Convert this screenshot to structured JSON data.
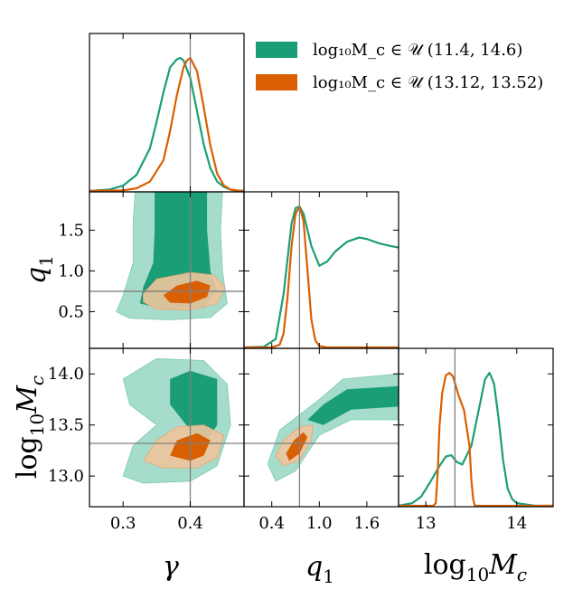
{
  "chart_data": {
    "type": "corner",
    "parameters": [
      {
        "key": "gamma",
        "label": "γ",
        "range": [
          0.25,
          0.48
        ],
        "ticks": [
          0.3,
          0.4
        ],
        "tick_labels": [
          "0.3",
          "0.4"
        ],
        "truth": 0.4
      },
      {
        "key": "q1",
        "label": "q₁",
        "range": [
          0.05,
          1.97
        ],
        "ticks": [
          0.5,
          1.0,
          1.5
        ],
        "tick_labels": [
          "0.5",
          "1.0",
          "1.5"
        ],
        "x_ticks": [
          0.4,
          1.0,
          1.6
        ],
        "x_tick_labels": [
          "0.4",
          "1.0",
          "1.6"
        ],
        "x_range": [
          0.05,
          2.0
        ],
        "truth": 0.75
      },
      {
        "key": "log10Mc",
        "label": "log₁₀M_c",
        "range": [
          12.7,
          14.25
        ],
        "ticks": [
          13.0,
          13.5,
          14.0
        ],
        "tick_labels": [
          "13.0",
          "13.5",
          "14.0"
        ],
        "x_range": [
          12.7,
          14.4
        ],
        "x_ticks": [
          13,
          14
        ],
        "x_tick_labels": [
          "13",
          "14"
        ],
        "truth": 13.32
      }
    ],
    "axis_titles": {
      "gamma": "γ",
      "q1": "q",
      "q1_sub": "1",
      "mc_prefix": "log",
      "mc_sub": "10",
      "mc_var": "M",
      "mc_var_sub": "c"
    },
    "series": [
      {
        "name": "wide_prior",
        "legend": "log₁₀M_c ∈ 𝒰 (11.4, 14.6)",
        "color": "#1b9e77",
        "color_light": "#a6dccb",
        "marginals": {
          "gamma": {
            "x": [
              0.25,
              0.28,
              0.3,
              0.32,
              0.34,
              0.35,
              0.36,
              0.37,
              0.38,
              0.385,
              0.39,
              0.4,
              0.41,
              0.42,
              0.43,
              0.44,
              0.45,
              0.46,
              0.47,
              0.48
            ],
            "y": [
              0.0,
              0.01,
              0.04,
              0.12,
              0.32,
              0.52,
              0.74,
              0.93,
              0.99,
              1.0,
              0.98,
              0.85,
              0.6,
              0.35,
              0.17,
              0.07,
              0.03,
              0.01,
              0.003,
              0.0
            ]
          },
          "q1": {
            "x": [
              0.05,
              0.3,
              0.45,
              0.55,
              0.65,
              0.7,
              0.75,
              0.8,
              0.9,
              1.0,
              1.1,
              1.2,
              1.35,
              1.5,
              1.6,
              1.75,
              1.9,
              2.0
            ],
            "y": [
              0.0,
              0.005,
              0.06,
              0.38,
              0.88,
              0.99,
              1.0,
              0.95,
              0.72,
              0.58,
              0.61,
              0.68,
              0.75,
              0.78,
              0.77,
              0.74,
              0.72,
              0.71
            ]
          },
          "log10Mc": {
            "x": [
              12.7,
              12.85,
              12.95,
              13.05,
              13.15,
              13.22,
              13.28,
              13.34,
              13.4,
              13.5,
              13.6,
              13.65,
              13.7,
              13.75,
              13.8,
              13.85,
              13.9,
              13.95,
              14.0,
              14.1,
              14.2,
              14.4
            ],
            "y": [
              0.0,
              0.02,
              0.07,
              0.18,
              0.3,
              0.37,
              0.38,
              0.33,
              0.31,
              0.45,
              0.78,
              0.95,
              1.0,
              0.92,
              0.66,
              0.34,
              0.13,
              0.05,
              0.02,
              0.01,
              0.0,
              0.0
            ]
          }
        }
      },
      {
        "name": "narrow_prior",
        "legend": "log₁₀M_c ∈ 𝒰 (13.12, 13.52)",
        "color": "#d95f02",
        "color_light": "#eec49c",
        "marginals": {
          "gamma": {
            "x": [
              0.25,
              0.3,
              0.32,
              0.34,
              0.36,
              0.37,
              0.38,
              0.39,
              0.395,
              0.4,
              0.41,
              0.42,
              0.43,
              0.44,
              0.45,
              0.46,
              0.47,
              0.48
            ],
            "y": [
              0.0,
              0.005,
              0.02,
              0.07,
              0.23,
              0.45,
              0.72,
              0.93,
              0.98,
              1.0,
              0.9,
              0.63,
              0.34,
              0.13,
              0.04,
              0.01,
              0.003,
              0.0
            ]
          },
          "q1": {
            "x": [
              0.05,
              0.4,
              0.5,
              0.55,
              0.6,
              0.65,
              0.7,
              0.75,
              0.8,
              0.85,
              0.9,
              0.95,
              1.0,
              1.1,
              2.0
            ],
            "y": [
              0.0,
              0.0,
              0.02,
              0.1,
              0.36,
              0.72,
              0.95,
              1.0,
              0.9,
              0.55,
              0.2,
              0.05,
              0.01,
              0.0,
              0.0
            ]
          },
          "log10Mc": {
            "x": [
              12.7,
              13.08,
              13.11,
              13.13,
              13.15,
              13.18,
              13.22,
              13.26,
              13.3,
              13.36,
              13.42,
              13.48,
              13.5,
              13.52,
              13.54,
              14.4
            ],
            "y": [
              0.0,
              0.0,
              0.02,
              0.25,
              0.6,
              0.85,
              0.98,
              1.0,
              0.97,
              0.83,
              0.72,
              0.45,
              0.2,
              0.05,
              0.0,
              0.0
            ]
          }
        }
      }
    ],
    "legend_position": "top-right",
    "truth_line_color": "#808080"
  }
}
